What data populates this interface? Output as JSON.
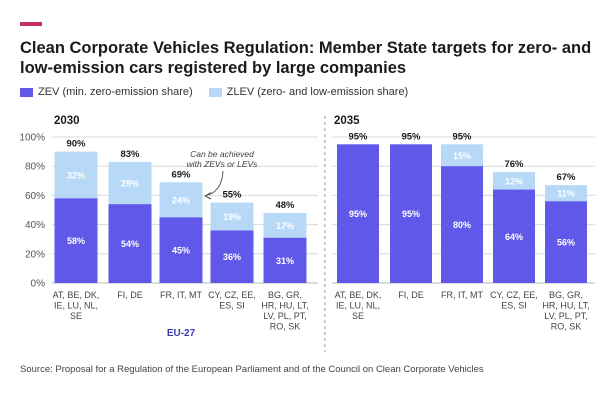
{
  "header": {
    "title": "Clean Corporate Vehicles Regulation: Member State targets for zero- and low-emission cars registered by large companies"
  },
  "legend": {
    "zev": "ZEV (min. zero-emission share)",
    "zlev": "ZLEV (zero- and low-emission share)"
  },
  "colors": {
    "accent": "#cc2e5a",
    "zev": "#6058e8",
    "zlev": "#b7d9f7",
    "grid": "#d9d9d9",
    "eu_label": "#3a3ab0"
  },
  "source": "Source: Proposal for a Regulation of the European Parliament and of the Council on Clean Corporate Vehicles",
  "chart_data": [
    {
      "type": "bar",
      "stacked": true,
      "title": "2030",
      "categories": [
        [
          "AT, BE, DK,",
          "IE, LU, NL,",
          "SE"
        ],
        [
          "FI, DE"
        ],
        [
          "FR, IT, MT"
        ],
        [
          "CY, CZ, EE,",
          "ES, SI"
        ],
        [
          "BG, GR,",
          "HR, HU, LT,",
          "LV, PL, PT,",
          "RO, SK"
        ]
      ],
      "series": [
        {
          "name": "ZEV",
          "values": [
            58,
            54,
            45,
            36,
            31
          ],
          "labels": [
            "58%",
            "54%",
            "45%",
            "36%",
            "31%"
          ]
        },
        {
          "name": "ZLEV extra",
          "values": [
            32,
            29,
            24,
            19,
            17
          ],
          "labels": [
            "32%",
            "29%",
            "24%",
            "19%",
            "17%"
          ]
        }
      ],
      "totals": [
        "90%",
        "83%",
        "69%",
        "55%",
        "48%"
      ],
      "ylim": [
        0,
        100
      ],
      "yticks": [
        "0%",
        "20%",
        "40%",
        "60%",
        "80%",
        "100%"
      ],
      "eu_label": "EU-27",
      "eu_index": 2,
      "annotation": [
        "Can be achieved",
        "with ZEVs or LEVs"
      ]
    },
    {
      "type": "bar",
      "stacked": true,
      "title": "2035",
      "categories": [
        [
          "AT, BE, DK,",
          "IE, LU, NL,",
          "SE"
        ],
        [
          "FI, DE"
        ],
        [
          "FR, IT, MT"
        ],
        [
          "CY, CZ, EE,",
          "ES, SI"
        ],
        [
          "BG, GR,",
          "HR, HU, LT,",
          "LV, PL, PT,",
          "RO, SK"
        ]
      ],
      "series": [
        {
          "name": "ZEV",
          "values": [
            95,
            95,
            80,
            64,
            56
          ],
          "labels": [
            "95%",
            "95%",
            "80%",
            "64%",
            "56%"
          ]
        },
        {
          "name": "ZLEV extra",
          "values": [
            0,
            0,
            15,
            12,
            11
          ],
          "labels": [
            "",
            "",
            "15%",
            "12%",
            "11%"
          ]
        }
      ],
      "totals": [
        "95%",
        "95%",
        "95%",
        "76%",
        "67%"
      ],
      "ylim": [
        0,
        100
      ]
    }
  ]
}
